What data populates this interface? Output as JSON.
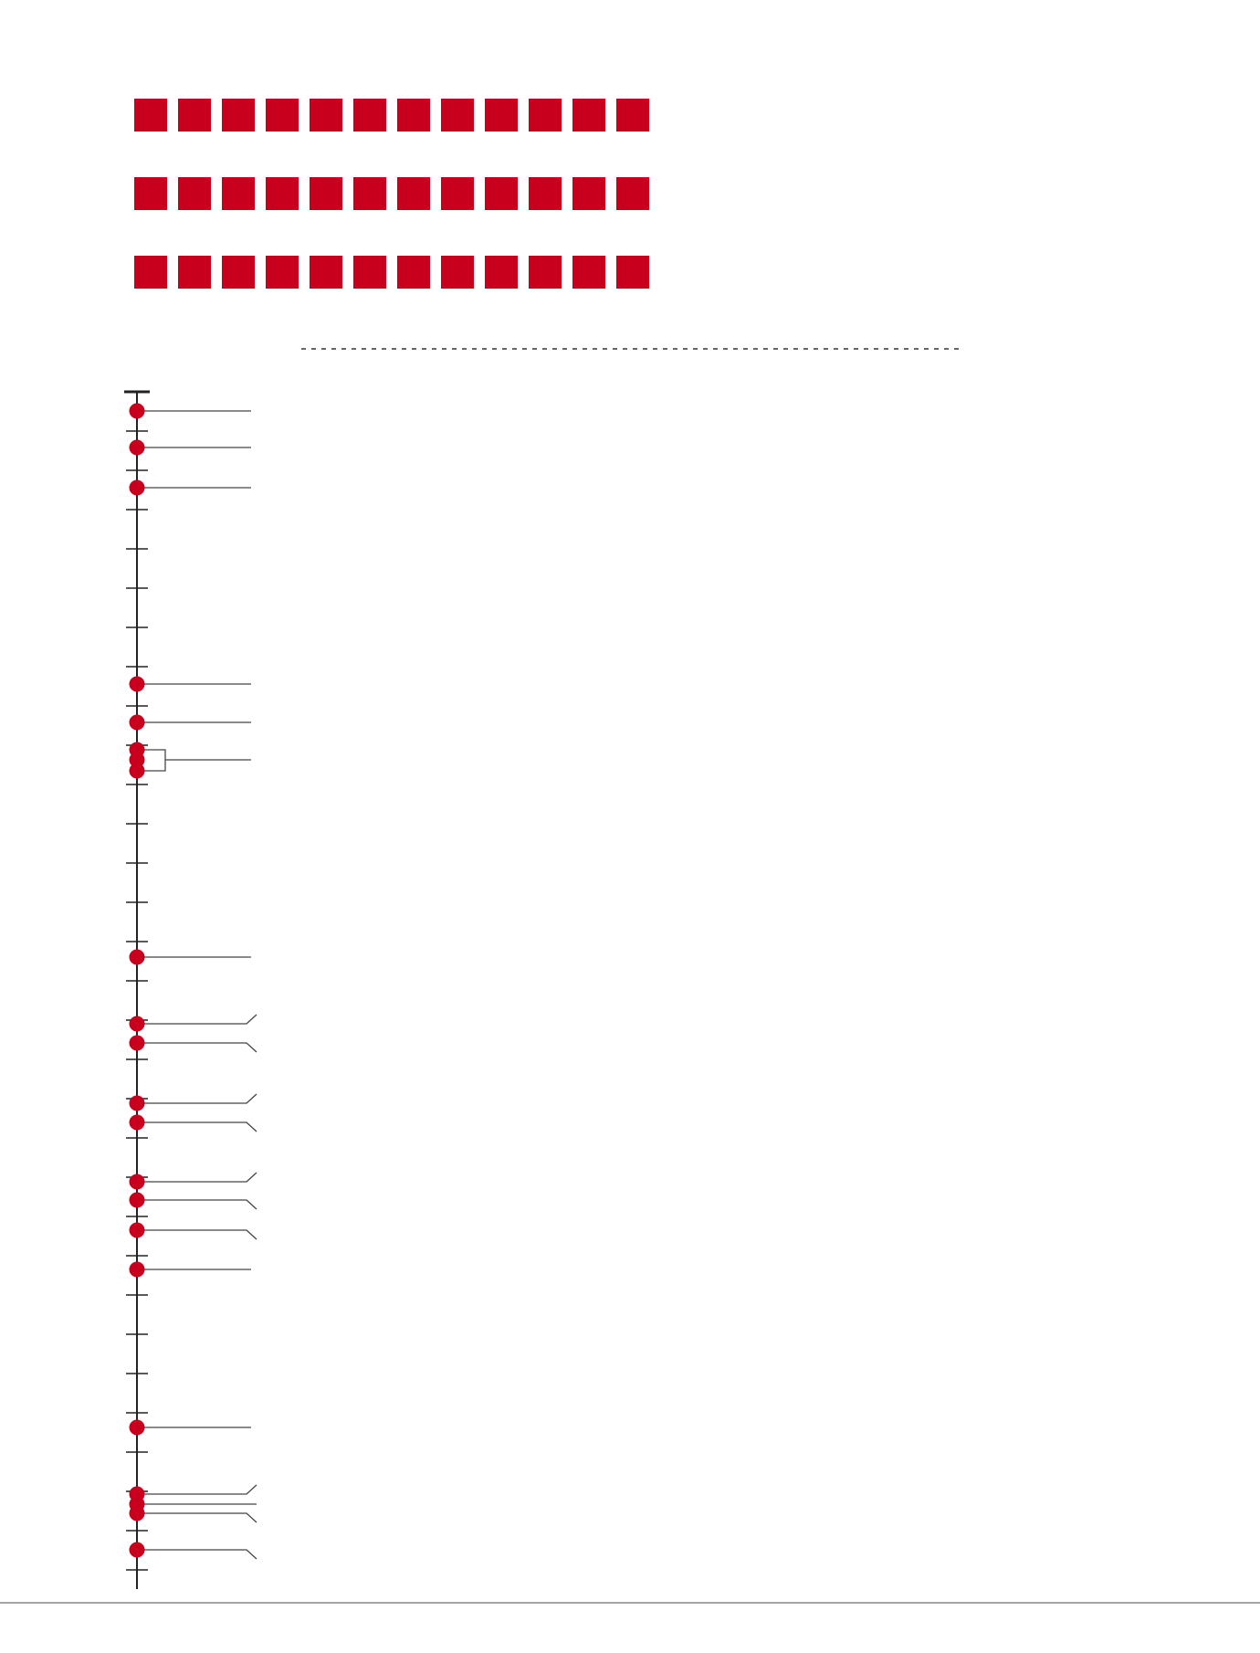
{
  "colors": {
    "accent": "#c8001e",
    "axis": "#222222",
    "leader": "#444444",
    "dashed_rule": "#333333",
    "footer_rule": "#888888",
    "background": "#ffffff"
  },
  "square_grid": {
    "rows": 3,
    "columns": 12,
    "shape": "square"
  },
  "timeline": {
    "orientation": "vertical",
    "tick_count": 31,
    "events": [
      {
        "label": ""
      },
      {
        "label": ""
      },
      {
        "label": ""
      },
      {
        "label": ""
      },
      {
        "label": ""
      },
      {
        "label": ""
      },
      {
        "label": ""
      },
      {
        "label": ""
      },
      {
        "label": ""
      },
      {
        "label": ""
      },
      {
        "label": ""
      },
      {
        "label": ""
      },
      {
        "label": ""
      },
      {
        "label": ""
      },
      {
        "label": ""
      },
      {
        "label": ""
      },
      {
        "label": ""
      },
      {
        "label": ""
      },
      {
        "label": ""
      },
      {
        "label": ""
      },
      {
        "label": ""
      },
      {
        "label": ""
      },
      {
        "label": ""
      },
      {
        "label": ""
      },
      {
        "label": ""
      }
    ]
  }
}
